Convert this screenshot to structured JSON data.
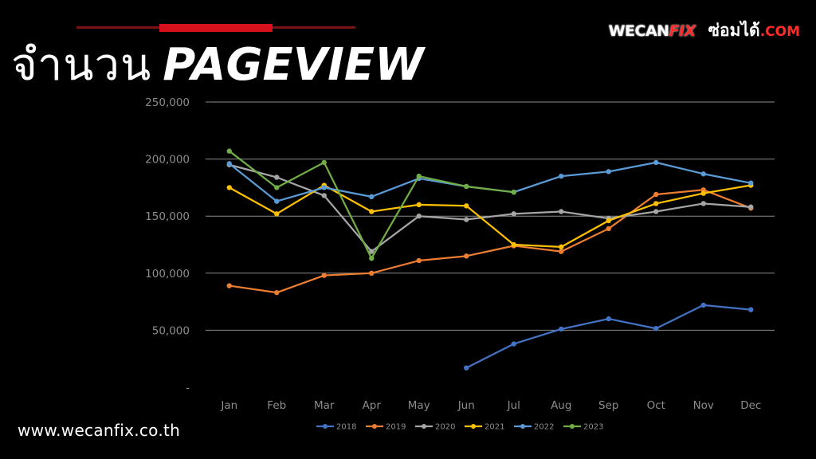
{
  "header": {
    "title_thai": "จำนวน",
    "title_en": "PAGEVIEW",
    "logo_left_main": "WECAN",
    "logo_left_accent": "FIX",
    "logo_right_main": "ซ่อมได้",
    "logo_right_accent": ".COM"
  },
  "footer": {
    "website": "www.wecanfix.co.th"
  },
  "colors": {
    "accent": "#d6111c",
    "background": "#000000"
  },
  "chart_data": {
    "type": "line",
    "categories": [
      "Jan",
      "Feb",
      "Mar",
      "Apr",
      "May",
      "Jun",
      "Jul",
      "Aug",
      "Sep",
      "Oct",
      "Nov",
      "Dec"
    ],
    "ylim": [
      0,
      250000
    ],
    "yticks": [
      "-",
      "50,000",
      "100,000",
      "150,000",
      "200,000",
      "250,000"
    ],
    "grid": true,
    "legend_position": "bottom",
    "series": [
      {
        "name": "2018",
        "color": "#4472c4",
        "values": [
          null,
          null,
          null,
          null,
          null,
          17000,
          38000,
          51000,
          60000,
          51500,
          72000,
          68000
        ]
      },
      {
        "name": "2019",
        "color": "#ed7d31",
        "values": [
          89000,
          83000,
          98000,
          100000,
          111000,
          115000,
          124000,
          119000,
          139000,
          169000,
          173000,
          157000
        ]
      },
      {
        "name": "2020",
        "color": "#a5a5a5",
        "values": [
          195000,
          184000,
          168000,
          119000,
          150000,
          147000,
          152000,
          154000,
          148000,
          154000,
          161000,
          158000
        ]
      },
      {
        "name": "2021",
        "color": "#ffc000",
        "values": [
          175000,
          152000,
          177000,
          154000,
          160000,
          159000,
          125000,
          123000,
          146000,
          161000,
          170000,
          177000
        ]
      },
      {
        "name": "2022",
        "color": "#5b9bd5",
        "values": [
          196000,
          163000,
          175000,
          167000,
          183000,
          176000,
          171000,
          185000,
          189000,
          197000,
          187000,
          179000
        ]
      },
      {
        "name": "2023",
        "color": "#70ad47",
        "values": [
          207000,
          175000,
          197000,
          113000,
          185000,
          176000,
          171000,
          null,
          null,
          null,
          null,
          null
        ]
      }
    ]
  }
}
